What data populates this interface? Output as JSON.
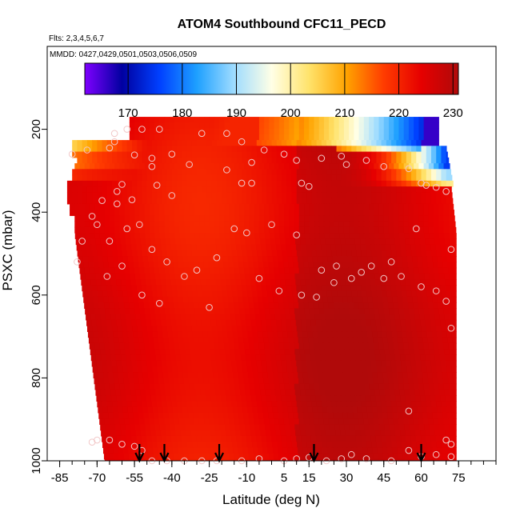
{
  "chart_data": {
    "type": "heatmap",
    "title": "ATOM4 Southbound CFC11_PECD",
    "subtitle_flights": "Flts: 2,3,4,5,6,7",
    "subtitle_dates": "MMDD: 0427,0429,0501,0503,0506,0509",
    "xlabel": "Latitude (deg N)",
    "ylabel": "PSXC (mbar)",
    "xlim": [
      -90,
      90
    ],
    "ylim": [
      1000,
      0
    ],
    "x_ticks": [
      -85,
      -70,
      -55,
      -40,
      -25,
      -10,
      5,
      15,
      30,
      45,
      60,
      75
    ],
    "x_tick_labels": [
      "-85",
      "-70",
      "-55",
      "-40",
      "-25",
      "-10",
      "5",
      "15",
      "30",
      "45",
      "60",
      "75"
    ],
    "y_ticks": [
      200,
      400,
      600,
      800,
      1000
    ],
    "y_tick_labels": [
      "200",
      "400",
      "600",
      "800",
      "1000"
    ],
    "colorbar": {
      "min": 162,
      "max": 231,
      "ticks": [
        170,
        180,
        190,
        200,
        210,
        220,
        230
      ],
      "tick_labels": [
        "170",
        "180",
        "190",
        "200",
        "210",
        "220",
        "230"
      ],
      "colors": [
        "#7f00ff",
        "#0000a0",
        "#0040ff",
        "#1ea0ff",
        "#9fdcff",
        "#ffffe6",
        "#ffe36b",
        "#ffa300",
        "#ff3c00",
        "#e60000",
        "#b00a0a"
      ]
    },
    "observation_points": [
      [
        -58,
        200
      ],
      [
        -52,
        200
      ],
      [
        -45,
        200
      ],
      [
        -28,
        210
      ],
      [
        -18,
        210
      ],
      [
        -12,
        230
      ],
      [
        -3,
        250
      ],
      [
        5,
        260
      ],
      [
        -40,
        260
      ],
      [
        -48,
        270
      ],
      [
        -55,
        262
      ],
      [
        -33,
        285
      ],
      [
        -48,
        290
      ],
      [
        -18,
        298
      ],
      [
        -12,
        330
      ],
      [
        -8,
        330
      ],
      [
        12,
        330
      ],
      [
        15,
        338
      ],
      [
        -40,
        360
      ],
      [
        -46,
        335
      ],
      [
        -60,
        333
      ],
      [
        -62,
        350
      ],
      [
        -68,
        372
      ],
      [
        -72,
        410
      ],
      [
        -70,
        430
      ],
      [
        -65,
        470
      ],
      [
        -58,
        440
      ],
      [
        -53,
        430
      ],
      [
        -48,
        490
      ],
      [
        -42,
        520
      ],
      [
        -35,
        555
      ],
      [
        -30,
        540
      ],
      [
        -22,
        510
      ],
      [
        -15,
        440
      ],
      [
        -10,
        450
      ],
      [
        0,
        430
      ],
      [
        10,
        455
      ],
      [
        20,
        540
      ],
      [
        25,
        570
      ],
      [
        32,
        560
      ],
      [
        40,
        530
      ],
      [
        48,
        520
      ],
      [
        52,
        555
      ],
      [
        60,
        580
      ],
      [
        66,
        590
      ],
      [
        -76,
        470
      ],
      [
        -78,
        520
      ],
      [
        -66,
        555
      ],
      [
        -60,
        530
      ],
      [
        -52,
        600
      ],
      [
        -45,
        620
      ],
      [
        -25,
        630
      ],
      [
        -5,
        560
      ],
      [
        3,
        590
      ],
      [
        12,
        600
      ],
      [
        18,
        605
      ],
      [
        26,
        530
      ],
      [
        36,
        545
      ],
      [
        45,
        560
      ],
      [
        55,
        880
      ],
      [
        60,
        330
      ],
      [
        62,
        335
      ],
      [
        66,
        340
      ],
      [
        70,
        350
      ],
      [
        58,
        440
      ],
      [
        72,
        490
      ],
      [
        70,
        615
      ],
      [
        72,
        680
      ],
      [
        -72,
        955
      ],
      [
        -70,
        950
      ],
      [
        -65,
        950
      ],
      [
        -60,
        960
      ],
      [
        -55,
        965
      ],
      [
        -52,
        975
      ],
      [
        -48,
        1000
      ],
      [
        -42,
        1000
      ],
      [
        -35,
        1000
      ],
      [
        -28,
        1000
      ],
      [
        -22,
        1000
      ],
      [
        -12,
        1000
      ],
      [
        -5,
        995
      ],
      [
        5,
        1000
      ],
      [
        10,
        995
      ],
      [
        15,
        992
      ],
      [
        22,
        1000
      ],
      [
        28,
        995
      ],
      [
        32,
        985
      ],
      [
        38,
        995
      ],
      [
        48,
        1000
      ],
      [
        55,
        975
      ],
      [
        60,
        990
      ],
      [
        66,
        985
      ],
      [
        72,
        990
      ],
      [
        72,
        960
      ],
      [
        70,
        950
      ],
      [
        -62,
        380
      ],
      [
        -56,
        370
      ],
      [
        30,
        285
      ],
      [
        38,
        275
      ],
      [
        45,
        290
      ],
      [
        55,
        295
      ],
      [
        -80,
        260
      ],
      [
        -74,
        250
      ],
      [
        -65,
        245
      ],
      [
        -63,
        230
      ],
      [
        -63,
        210
      ],
      [
        -8,
        280
      ],
      [
        10,
        275
      ],
      [
        20,
        270
      ],
      [
        28,
        265
      ]
    ],
    "arrows_at_latitude": [
      -53,
      -43,
      -21,
      17,
      60
    ]
  }
}
